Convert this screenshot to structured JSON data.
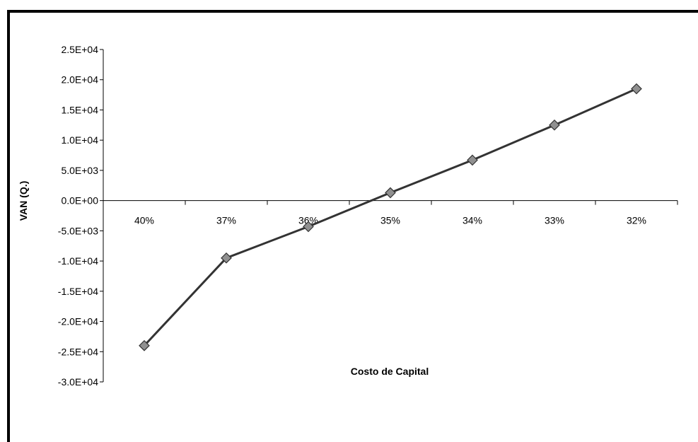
{
  "chart_data": {
    "type": "line",
    "title": "",
    "xlabel": "Costo de Capital",
    "ylabel": "VAN (Q.)",
    "categories": [
      "40%",
      "37%",
      "36%",
      "35%",
      "34%",
      "33%",
      "32%"
    ],
    "series": [
      {
        "values": [
          -24000,
          -9500,
          -4300,
          1300,
          6700,
          12500,
          18500
        ]
      }
    ],
    "yticks": [
      {
        "value": 25000,
        "label": "2.5E+04"
      },
      {
        "value": 20000,
        "label": "2.0E+04"
      },
      {
        "value": 15000,
        "label": "1.5E+04"
      },
      {
        "value": 10000,
        "label": "1.0E+04"
      },
      {
        "value": 5000,
        "label": "5.0E+03"
      },
      {
        "value": 0,
        "label": "0.0E+00"
      },
      {
        "value": -5000,
        "label": "-5.0E+03"
      },
      {
        "value": -10000,
        "label": "-1.0E+04"
      },
      {
        "value": -15000,
        "label": "-1.5E+04"
      },
      {
        "value": -20000,
        "label": "-2.0E+04"
      },
      {
        "value": -25000,
        "label": "-2.5E+04"
      },
      {
        "value": -30000,
        "label": "-3.0E+04"
      }
    ],
    "ylim": [
      -30000,
      25000
    ],
    "grid": false,
    "legend": "none",
    "colors": {
      "line": "#333333",
      "marker_fill": "#909090",
      "marker_stroke": "#333333",
      "border": "#000000"
    }
  }
}
